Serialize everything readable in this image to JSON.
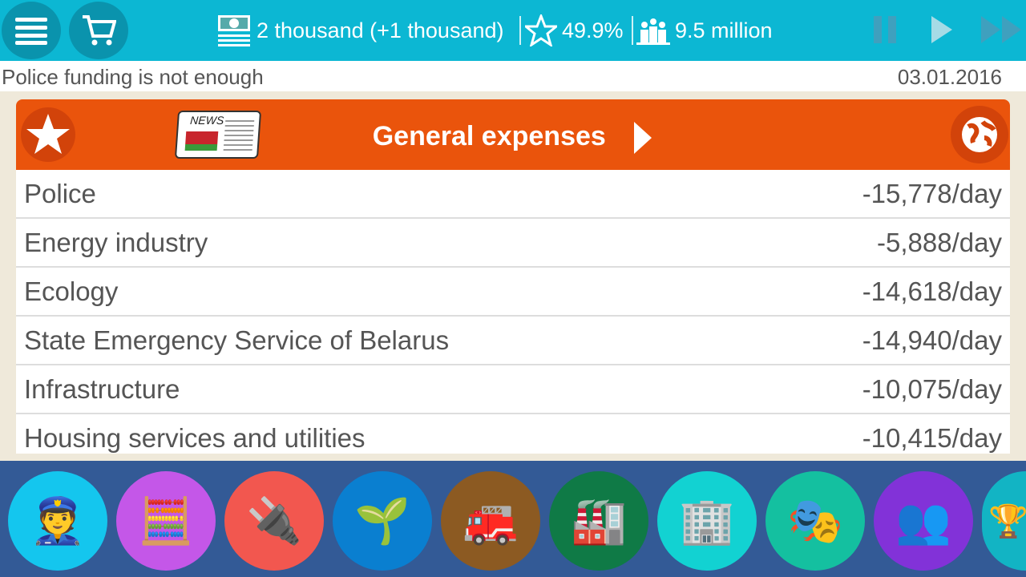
{
  "header": {
    "money": "2 thousand (+1 thousand)",
    "rating": "49.9%",
    "population": "9.5 million"
  },
  "status": {
    "message": "Police funding is not enough",
    "date": "03.01.2016"
  },
  "panel": {
    "title": "General expenses",
    "news_label": "NEWS"
  },
  "expenses": [
    {
      "name": "Police",
      "value": "-15,778/day"
    },
    {
      "name": "Energy industry",
      "value": "-5,888/day"
    },
    {
      "name": "Ecology",
      "value": "-14,618/day"
    },
    {
      "name": "State Emergency Service of Belarus",
      "value": "-14,940/day"
    },
    {
      "name": "Infrastructure",
      "value": "-10,075/day"
    },
    {
      "name": "Housing services and utilities",
      "value": "-10,415/day"
    }
  ],
  "categories": [
    {
      "icon": "police-icon",
      "color": "#14c6ee",
      "glyph": "👮"
    },
    {
      "icon": "finance-icon",
      "color": "#c457e8",
      "glyph": "🧮"
    },
    {
      "icon": "energy-plug-icon",
      "color": "#f2574f",
      "glyph": "🔌"
    },
    {
      "icon": "ecology-plant-icon",
      "color": "#0a7fd0",
      "glyph": "🌱"
    },
    {
      "icon": "fire-station-icon",
      "color": "#8c5a22",
      "glyph": "🚒"
    },
    {
      "icon": "factory-icon",
      "color": "#0f7a46",
      "glyph": "🏭"
    },
    {
      "icon": "housing-icon",
      "color": "#12d2d2",
      "glyph": "🏢"
    },
    {
      "icon": "theatre-icon",
      "color": "#14c0a0",
      "glyph": "🎭"
    },
    {
      "icon": "people-icon",
      "color": "#8232d8",
      "glyph": "👥"
    },
    {
      "icon": "trophy-icon",
      "color": "#12b4c4",
      "glyph": "🏆"
    }
  ]
}
